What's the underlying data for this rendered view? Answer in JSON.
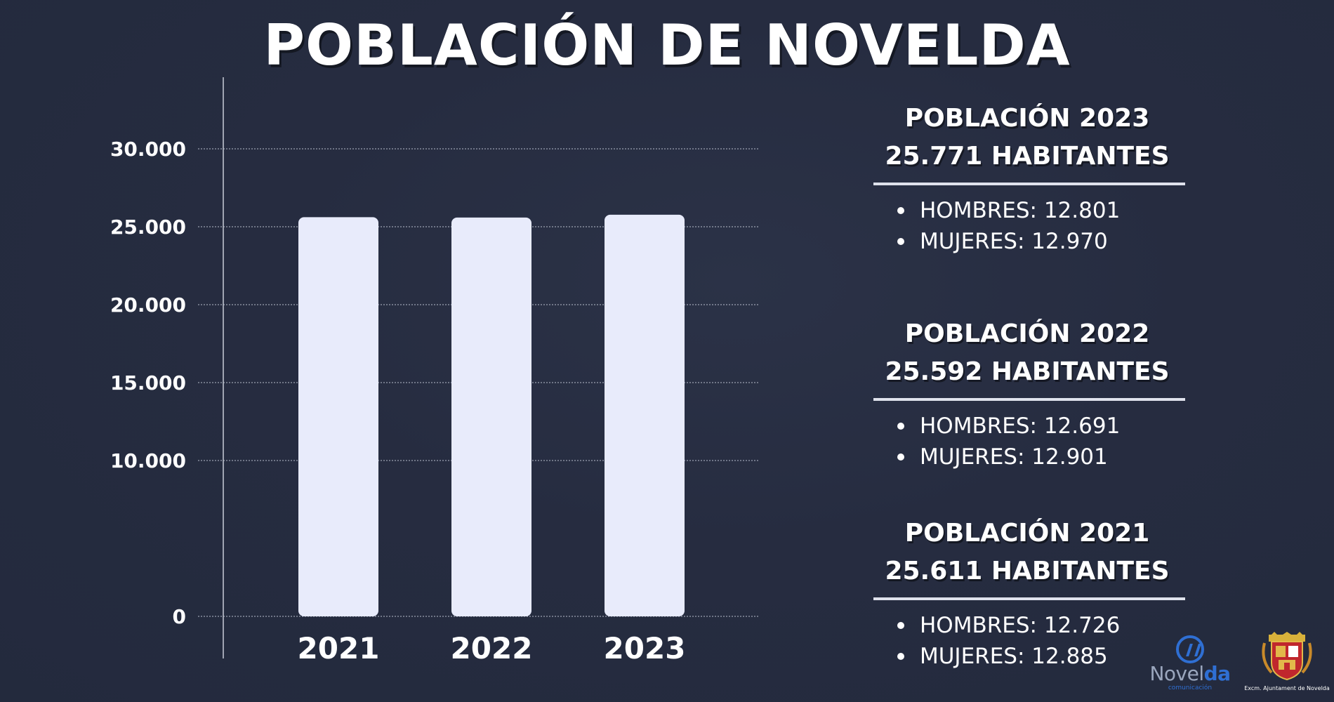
{
  "title": "POBLACIÓN DE NOVELDA",
  "chart_data": {
    "type": "bar",
    "categories": [
      "2021",
      "2022",
      "2023"
    ],
    "values": [
      25611,
      25592,
      25771
    ],
    "ylim": [
      0,
      30000
    ],
    "yticks": [
      0,
      10000,
      15000,
      20000,
      25000,
      30000
    ],
    "ytick_labels": [
      "0",
      "10.000",
      "15.000",
      "20.000",
      "25.000",
      "30.000"
    ],
    "grid": true,
    "bar_color": "#e8ebfb"
  },
  "panels": [
    {
      "head1": "POBLACIÓN 2023",
      "head2": "25.771 HABITANTES",
      "men": "HOMBRES: 12.801",
      "women": "MUJERES: 12.970"
    },
    {
      "head1": "POBLACIÓN 2022",
      "head2": "25.592 HABITANTES",
      "men": "HOMBRES: 12.691",
      "women": "MUJERES: 12.901"
    },
    {
      "head1": "POBLACIÓN 2021",
      "head2": "25.611 HABITANTES",
      "men": "HOMBRES: 12.726",
      "women": "MUJERES: 12.885"
    }
  ],
  "logos": {
    "novelda_word_a": "Novel",
    "novelda_word_b": "da",
    "novelda_sub": "comunicación",
    "ajuntament_caption": "Excm. Ajuntament de Novelda"
  },
  "colors": {
    "background": "#262c40",
    "bar": "#e8ebfb",
    "accent_blue": "#2f6fd3"
  }
}
